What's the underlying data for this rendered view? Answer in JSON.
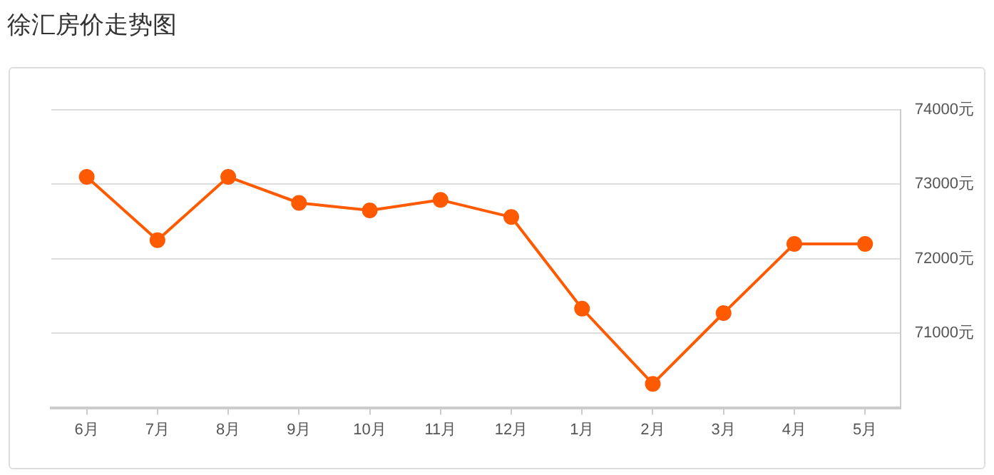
{
  "chart_data": {
    "type": "line",
    "title": "徐汇房价走势图",
    "categories": [
      "6月",
      "7月",
      "8月",
      "9月",
      "10月",
      "11月",
      "12月",
      "1月",
      "2月",
      "3月",
      "4月",
      "5月"
    ],
    "series": [
      {
        "color": "#ff5a00",
        "values": [
          73100,
          72250,
          73100,
          72750,
          72650,
          72790,
          72560,
          71330,
          70320,
          71270,
          72200,
          72200
        ]
      }
    ],
    "ylim": [
      70000,
      74000
    ],
    "yticks": [
      {
        "value": 71000,
        "label": "71000元"
      },
      {
        "value": 72000,
        "label": "72000元"
      },
      {
        "value": 73000,
        "label": "73000元"
      },
      {
        "value": 74000,
        "label": "74000元"
      }
    ],
    "grid": "y",
    "legend": false,
    "marker": "circle",
    "line_style": "solid"
  }
}
